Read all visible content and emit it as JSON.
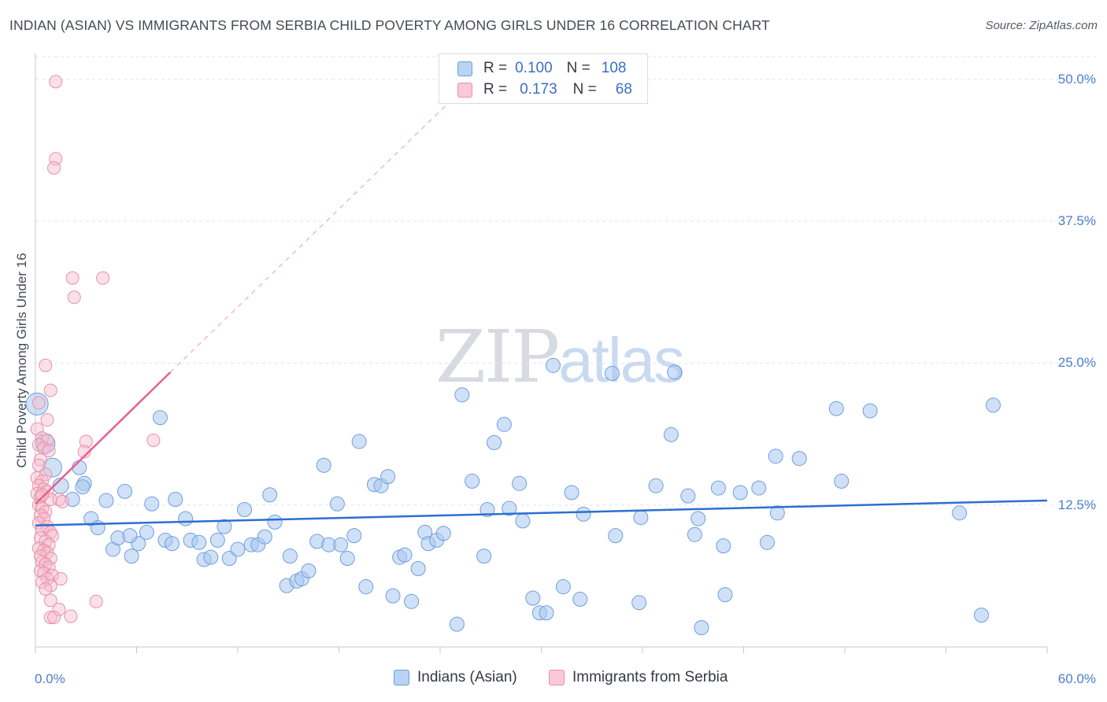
{
  "header": {
    "title": "INDIAN (ASIAN) VS IMMIGRANTS FROM SERBIA CHILD POVERTY AMONG GIRLS UNDER 16 CORRELATION CHART",
    "source": "Source: ZipAtlas.com"
  },
  "watermark": {
    "zip": "ZIP",
    "atlas": "atlas"
  },
  "legend": {
    "rows": [
      {
        "r_label": "R =",
        "r_value": "0.100",
        "n_label": "N =",
        "n_value": "108"
      },
      {
        "r_label": "R =",
        "r_value": "0.173",
        "n_label": "N =",
        "n_value": "68"
      }
    ]
  },
  "bottom_legend": {
    "series1": "Indians (Asian)",
    "series2": "Immigrants from Serbia"
  },
  "colors": {
    "blue_fill": "#a9c8f0",
    "blue_stroke": "#6d9ee0",
    "blue_line": "#2c6fd0",
    "pink_fill": "#f5bccd",
    "pink_stroke": "#ea8fab",
    "pink_line": "#e8608e",
    "grid": "#e2e5ea",
    "tick_text": "#4a7fcf"
  },
  "chart_data": {
    "type": "scatter",
    "title": "INDIAN (ASIAN) VS IMMIGRANTS FROM SERBIA CHILD POVERTY AMONG GIRLS UNDER 16 CORRELATION CHART",
    "xlabel": "",
    "ylabel": "Child Poverty Among Girls Under 16",
    "xlim": [
      0,
      60
    ],
    "ylim": [
      0,
      52
    ],
    "x_tick_labels": [
      "0.0%",
      "60.0%"
    ],
    "y_ticks": [
      12.5,
      25.0,
      37.5,
      50.0
    ],
    "y_tick_labels": [
      "12.5%",
      "25.0%",
      "37.5%",
      "50.0%"
    ],
    "grid": true,
    "series": [
      {
        "name": "Indians (Asian)",
        "r": 0.1,
        "n": 108,
        "trend": {
          "x0": 0,
          "y0": 10.7,
          "x1": 60,
          "y1": 12.9
        },
        "points": [
          [
            0.1,
            21.4,
            14
          ],
          [
            0.6,
            17.9,
            12
          ],
          [
            1.0,
            15.8,
            12
          ],
          [
            1.5,
            14.2,
            10
          ],
          [
            2.2,
            13.0,
            9
          ],
          [
            2.6,
            15.8,
            9
          ],
          [
            2.9,
            14.4,
            9
          ],
          [
            3.3,
            11.3,
            9
          ],
          [
            3.7,
            10.5,
            9
          ],
          [
            4.2,
            12.9,
            9
          ],
          [
            4.6,
            8.6,
            9
          ],
          [
            4.9,
            9.6,
            9
          ],
          [
            5.3,
            13.7,
            9
          ],
          [
            5.7,
            8.0,
            9
          ],
          [
            6.1,
            9.1,
            9
          ],
          [
            6.6,
            10.1,
            9
          ],
          [
            6.9,
            12.6,
            9
          ],
          [
            7.4,
            20.2,
            9
          ],
          [
            7.7,
            9.4,
            9
          ],
          [
            8.1,
            9.1,
            9
          ],
          [
            8.3,
            13.0,
            9
          ],
          [
            8.9,
            11.3,
            9
          ],
          [
            9.2,
            9.4,
            9
          ],
          [
            9.7,
            9.2,
            9
          ],
          [
            10.0,
            7.7,
            9
          ],
          [
            10.4,
            7.9,
            9
          ],
          [
            10.8,
            9.4,
            9
          ],
          [
            11.2,
            10.6,
            9
          ],
          [
            11.5,
            7.8,
            9
          ],
          [
            12.0,
            8.6,
            9
          ],
          [
            12.4,
            12.1,
            9
          ],
          [
            12.8,
            9.0,
            9
          ],
          [
            13.2,
            9.0,
            9
          ],
          [
            13.6,
            9.7,
            9
          ],
          [
            13.9,
            13.4,
            9
          ],
          [
            14.2,
            11.0,
            9
          ],
          [
            14.9,
            5.4,
            9
          ],
          [
            15.1,
            8.0,
            9
          ],
          [
            15.5,
            5.8,
            9
          ],
          [
            15.8,
            6.0,
            9
          ],
          [
            16.2,
            6.7,
            9
          ],
          [
            16.7,
            9.3,
            9
          ],
          [
            17.1,
            16.0,
            9
          ],
          [
            17.4,
            9.0,
            9
          ],
          [
            17.9,
            12.6,
            9
          ],
          [
            18.1,
            9.0,
            9
          ],
          [
            18.5,
            7.8,
            9
          ],
          [
            18.9,
            9.8,
            9
          ],
          [
            19.2,
            18.1,
            9
          ],
          [
            19.6,
            5.3,
            9
          ],
          [
            20.1,
            14.3,
            9
          ],
          [
            20.5,
            14.2,
            9
          ],
          [
            20.9,
            15.0,
            9
          ],
          [
            21.2,
            4.5,
            9
          ],
          [
            21.6,
            7.9,
            9
          ],
          [
            21.9,
            8.1,
            9
          ],
          [
            22.3,
            4.0,
            9
          ],
          [
            22.7,
            6.9,
            9
          ],
          [
            23.1,
            10.1,
            9
          ],
          [
            23.3,
            9.1,
            9
          ],
          [
            23.8,
            9.4,
            9
          ],
          [
            24.2,
            10.0,
            9
          ],
          [
            25.0,
            2.0,
            9
          ],
          [
            25.3,
            22.2,
            9
          ],
          [
            25.9,
            14.6,
            9
          ],
          [
            26.6,
            8.0,
            9
          ],
          [
            26.8,
            12.1,
            9
          ],
          [
            27.2,
            18.0,
            9
          ],
          [
            27.8,
            19.6,
            9
          ],
          [
            28.1,
            12.2,
            9
          ],
          [
            28.7,
            14.4,
            9
          ],
          [
            28.9,
            11.1,
            9
          ],
          [
            29.5,
            4.3,
            9
          ],
          [
            29.9,
            3.0,
            9
          ],
          [
            30.3,
            3.0,
            9
          ],
          [
            30.7,
            24.8,
            9
          ],
          [
            31.3,
            5.3,
            9
          ],
          [
            31.8,
            13.6,
            9
          ],
          [
            32.3,
            4.2,
            9
          ],
          [
            32.5,
            11.7,
            9
          ],
          [
            34.2,
            24.1,
            9
          ],
          [
            34.4,
            9.8,
            9
          ],
          [
            35.8,
            3.9,
            9
          ],
          [
            35.9,
            11.4,
            9
          ],
          [
            36.8,
            14.2,
            9
          ],
          [
            37.7,
            18.7,
            9
          ],
          [
            37.9,
            24.2,
            9
          ],
          [
            38.7,
            13.3,
            9
          ],
          [
            39.1,
            9.9,
            9
          ],
          [
            39.3,
            11.3,
            9
          ],
          [
            39.5,
            1.7,
            9
          ],
          [
            40.5,
            14.0,
            9
          ],
          [
            40.8,
            8.9,
            9
          ],
          [
            40.9,
            4.6,
            9
          ],
          [
            41.8,
            13.6,
            9
          ],
          [
            42.9,
            14.0,
            9
          ],
          [
            43.4,
            9.2,
            9
          ],
          [
            43.9,
            16.8,
            9
          ],
          [
            44.0,
            11.8,
            9
          ],
          [
            45.3,
            16.6,
            9
          ],
          [
            47.5,
            21.0,
            9
          ],
          [
            47.8,
            14.6,
            9
          ],
          [
            49.5,
            20.8,
            9
          ],
          [
            54.8,
            11.8,
            9
          ],
          [
            56.1,
            2.8,
            9
          ],
          [
            56.8,
            21.3,
            9
          ],
          [
            2.8,
            14.1,
            9
          ],
          [
            5.6,
            9.8,
            9
          ]
        ]
      },
      {
        "name": "Immigrants from Serbia",
        "r": 0.173,
        "n": 68,
        "trend": {
          "x0": 0,
          "y0": 12.6,
          "x1": 8.0,
          "y1": 24.2
        },
        "trend_dashed": {
          "x0": 8.0,
          "y0": 24.2,
          "x1": 24.9,
          "y1": 48.5
        },
        "points": [
          [
            1.2,
            49.8
          ],
          [
            1.2,
            43.0
          ],
          [
            1.1,
            42.2
          ],
          [
            2.2,
            32.5
          ],
          [
            4.0,
            32.5
          ],
          [
            2.3,
            30.8
          ],
          [
            0.6,
            24.8
          ],
          [
            0.9,
            22.6
          ],
          [
            7.0,
            18.2
          ],
          [
            3.0,
            18.1
          ],
          [
            0.1,
            19.2
          ],
          [
            0.4,
            18.4
          ],
          [
            0.7,
            18.2
          ],
          [
            0.2,
            17.8
          ],
          [
            0.5,
            17.5
          ],
          [
            0.8,
            17.3
          ],
          [
            2.9,
            17.2
          ],
          [
            0.3,
            16.5
          ],
          [
            0.2,
            16.0
          ],
          [
            0.6,
            15.2
          ],
          [
            0.1,
            14.9
          ],
          [
            0.4,
            14.6
          ],
          [
            0.2,
            14.2
          ],
          [
            0.5,
            13.9
          ],
          [
            0.7,
            13.7
          ],
          [
            0.1,
            13.5
          ],
          [
            0.3,
            13.2
          ],
          [
            0.9,
            13.0
          ],
          [
            1.4,
            13.0
          ],
          [
            1.6,
            12.8
          ],
          [
            0.2,
            12.5
          ],
          [
            0.4,
            12.2
          ],
          [
            0.6,
            11.9
          ],
          [
            0.3,
            11.6
          ],
          [
            0.5,
            11.3
          ],
          [
            0.2,
            10.9
          ],
          [
            0.7,
            10.6
          ],
          [
            0.4,
            10.3
          ],
          [
            0.9,
            10.1
          ],
          [
            1.0,
            9.8
          ],
          [
            0.3,
            9.6
          ],
          [
            0.6,
            9.3
          ],
          [
            0.8,
            9.0
          ],
          [
            0.2,
            8.7
          ],
          [
            0.5,
            8.5
          ],
          [
            0.7,
            8.3
          ],
          [
            0.3,
            8.0
          ],
          [
            0.9,
            7.8
          ],
          [
            0.4,
            7.5
          ],
          [
            0.6,
            7.3
          ],
          [
            0.8,
            7.0
          ],
          [
            0.3,
            6.7
          ],
          [
            0.5,
            6.5
          ],
          [
            1.0,
            6.3
          ],
          [
            0.7,
            6.0
          ],
          [
            1.5,
            6.0
          ],
          [
            0.4,
            5.7
          ],
          [
            0.9,
            5.4
          ],
          [
            0.6,
            5.1
          ],
          [
            0.9,
            4.1
          ],
          [
            3.6,
            4.0
          ],
          [
            1.4,
            3.3
          ],
          [
            0.9,
            2.6
          ],
          [
            1.1,
            2.6
          ],
          [
            2.1,
            2.7
          ],
          [
            0.2,
            21.5
          ],
          [
            0.7,
            20.0
          ],
          [
            0.4,
            13.4
          ]
        ]
      }
    ]
  }
}
